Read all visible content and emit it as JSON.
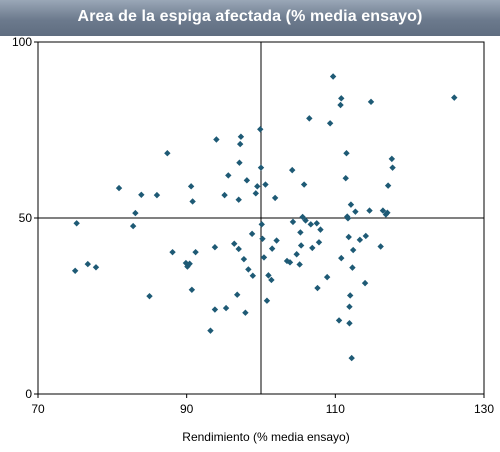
{
  "chart_data": {
    "type": "scatter",
    "title": "Area de la espiga afectada (% media ensayo)",
    "xlabel": "Rendimiento (% media ensayo)",
    "ylabel": "",
    "xlim": [
      70,
      130
    ],
    "ylim": [
      0,
      100
    ],
    "x_ticks": [
      "70",
      "90",
      "110",
      "130"
    ],
    "y_ticks": [
      "0",
      "50",
      "100"
    ],
    "reference_lines": {
      "x": 100,
      "y": 50
    },
    "grid": false,
    "marker": {
      "shape": "diamond",
      "color": "#1e5a75"
    },
    "points": [
      [
        75.0,
        35.0
      ],
      [
        75.2,
        48.5
      ],
      [
        76.7,
        36.9
      ],
      [
        77.8,
        36.0
      ],
      [
        80.9,
        58.5
      ],
      [
        82.8,
        47.7
      ],
      [
        83.1,
        51.4
      ],
      [
        83.9,
        56.6
      ],
      [
        85.0,
        27.8
      ],
      [
        86.0,
        56.5
      ],
      [
        87.4,
        68.4
      ],
      [
        88.1,
        40.3
      ],
      [
        89.9,
        37.2
      ],
      [
        90.1,
        36.2
      ],
      [
        90.4,
        37.0
      ],
      [
        90.6,
        59.0
      ],
      [
        90.7,
        29.6
      ],
      [
        90.8,
        54.7
      ],
      [
        91.2,
        40.3
      ],
      [
        93.2,
        18.0
      ],
      [
        93.8,
        41.7
      ],
      [
        93.8,
        24.0
      ],
      [
        94.0,
        72.3
      ],
      [
        95.1,
        56.5
      ],
      [
        95.3,
        24.4
      ],
      [
        95.6,
        62.1
      ],
      [
        96.4,
        42.7
      ],
      [
        96.8,
        28.2
      ],
      [
        97.0,
        41.2
      ],
      [
        97.0,
        55.2
      ],
      [
        97.1,
        65.7
      ],
      [
        97.2,
        71.0
      ],
      [
        97.3,
        73.1
      ],
      [
        97.7,
        38.3
      ],
      [
        97.9,
        23.1
      ],
      [
        98.1,
        60.7
      ],
      [
        98.3,
        35.4
      ],
      [
        98.8,
        45.5
      ],
      [
        98.9,
        33.6
      ],
      [
        99.3,
        57.0
      ],
      [
        99.5,
        59.0
      ],
      [
        99.9,
        75.2
      ],
      [
        100.0,
        64.3
      ],
      [
        100.1,
        48.2
      ],
      [
        100.2,
        44.1
      ],
      [
        100.4,
        38.8
      ],
      [
        100.6,
        59.5
      ],
      [
        100.8,
        26.5
      ],
      [
        101.0,
        33.7
      ],
      [
        101.4,
        32.4
      ],
      [
        101.5,
        41.3
      ],
      [
        101.9,
        55.7
      ],
      [
        102.1,
        43.6
      ],
      [
        103.5,
        37.8
      ],
      [
        103.9,
        37.4
      ],
      [
        104.2,
        63.6
      ],
      [
        104.3,
        48.9
      ],
      [
        104.8,
        39.7
      ],
      [
        105.2,
        36.8
      ],
      [
        105.3,
        45.9
      ],
      [
        105.4,
        42.2
      ],
      [
        105.6,
        50.3
      ],
      [
        105.8,
        59.5
      ],
      [
        106.0,
        49.3
      ],
      [
        106.5,
        78.3
      ],
      [
        106.7,
        48.2
      ],
      [
        106.9,
        41.5
      ],
      [
        107.5,
        48.5
      ],
      [
        107.6,
        30.1
      ],
      [
        107.8,
        43.1
      ],
      [
        108.0,
        46.7
      ],
      [
        108.9,
        33.2
      ],
      [
        109.3,
        76.9
      ],
      [
        109.7,
        90.2
      ],
      [
        110.5,
        20.9
      ],
      [
        110.7,
        82.1
      ],
      [
        110.8,
        84.0
      ],
      [
        110.8,
        38.6
      ],
      [
        111.4,
        61.3
      ],
      [
        111.5,
        68.4
      ],
      [
        111.6,
        50.4
      ],
      [
        111.7,
        49.9
      ],
      [
        111.8,
        44.6
      ],
      [
        111.9,
        20.1
      ],
      [
        111.9,
        24.8
      ],
      [
        112.0,
        28.0
      ],
      [
        112.1,
        53.8
      ],
      [
        112.2,
        10.2
      ],
      [
        112.3,
        35.9
      ],
      [
        112.4,
        40.9
      ],
      [
        112.7,
        51.8
      ],
      [
        113.3,
        43.8
      ],
      [
        114.0,
        31.5
      ],
      [
        114.1,
        44.9
      ],
      [
        114.6,
        52.1
      ],
      [
        114.8,
        83.0
      ],
      [
        116.1,
        41.9
      ],
      [
        116.4,
        52.1
      ],
      [
        116.8,
        51.0
      ],
      [
        117.0,
        51.5
      ],
      [
        117.1,
        59.2
      ],
      [
        117.6,
        66.8
      ],
      [
        117.7,
        64.3
      ],
      [
        126.0,
        84.2
      ]
    ]
  }
}
